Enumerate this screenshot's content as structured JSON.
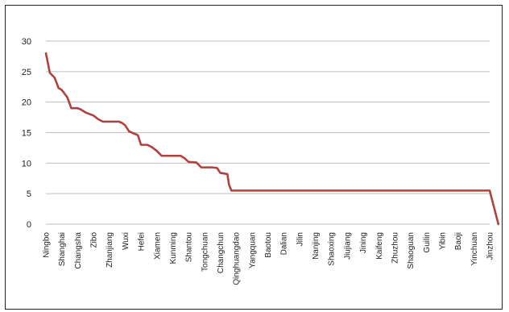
{
  "chart_data": {
    "type": "line",
    "title": "",
    "xlabel": "",
    "ylabel": "",
    "ylim": [
      0,
      30
    ],
    "yticks": [
      0,
      5,
      10,
      15,
      20,
      25,
      30
    ],
    "grid": true,
    "legend": "none",
    "line_color": "#b0413e",
    "grid_color": "#bfbfbf",
    "categories": [
      "Ningbo",
      "Shanghai",
      "Changsha",
      "Zibo",
      "Zhanjiang",
      "Wuxi",
      "Hefei",
      "Xiamen",
      "Kunming",
      "Shantou",
      "Tongchuan",
      "Changchun",
      "Qinghuangdao",
      "Yangquan",
      "Baotou",
      "Dalian",
      "Jilin",
      "Nanjing",
      "Shaoxing",
      "Jiujiang",
      "Jining",
      "Kaifeng",
      "Zhuzhou",
      "Shaoguan",
      "Guilin",
      "Yibin",
      "Baoji",
      "Yinchuan",
      "Jinzhou"
    ],
    "series": [
      {
        "x": [
          0,
          0.25,
          0.55,
          0.8,
          1.0,
          1.35,
          1.6,
          1.85,
          2.0,
          2.2,
          2.5,
          3.0,
          3.3,
          3.6,
          4.0,
          4.3,
          4.6,
          4.8,
          5.0,
          5.25,
          5.6,
          5.8,
          6.0,
          6.4,
          6.7,
          7.0,
          7.3,
          7.6,
          8.0,
          8.5,
          8.75,
          9.0,
          9.5,
          9.8,
          10.0,
          10.5,
          10.8,
          11.0,
          11.25,
          11.45,
          11.55,
          11.7,
          12.0,
          28.0,
          28.2,
          28.4,
          28.55
        ],
        "y": [
          28.0,
          24.8,
          24.0,
          22.3,
          22.0,
          20.8,
          19.0,
          19.0,
          19.0,
          18.8,
          18.3,
          17.8,
          17.2,
          16.8,
          16.8,
          16.8,
          16.8,
          16.6,
          16.2,
          15.2,
          14.8,
          14.6,
          13.0,
          13.0,
          12.6,
          12.0,
          11.2,
          11.2,
          11.2,
          11.2,
          10.8,
          10.2,
          10.1,
          9.3,
          9.3,
          9.3,
          9.2,
          8.4,
          8.3,
          8.2,
          6.5,
          5.5,
          5.5,
          5.5,
          3.5,
          1.5,
          0.0
        ]
      }
    ]
  }
}
